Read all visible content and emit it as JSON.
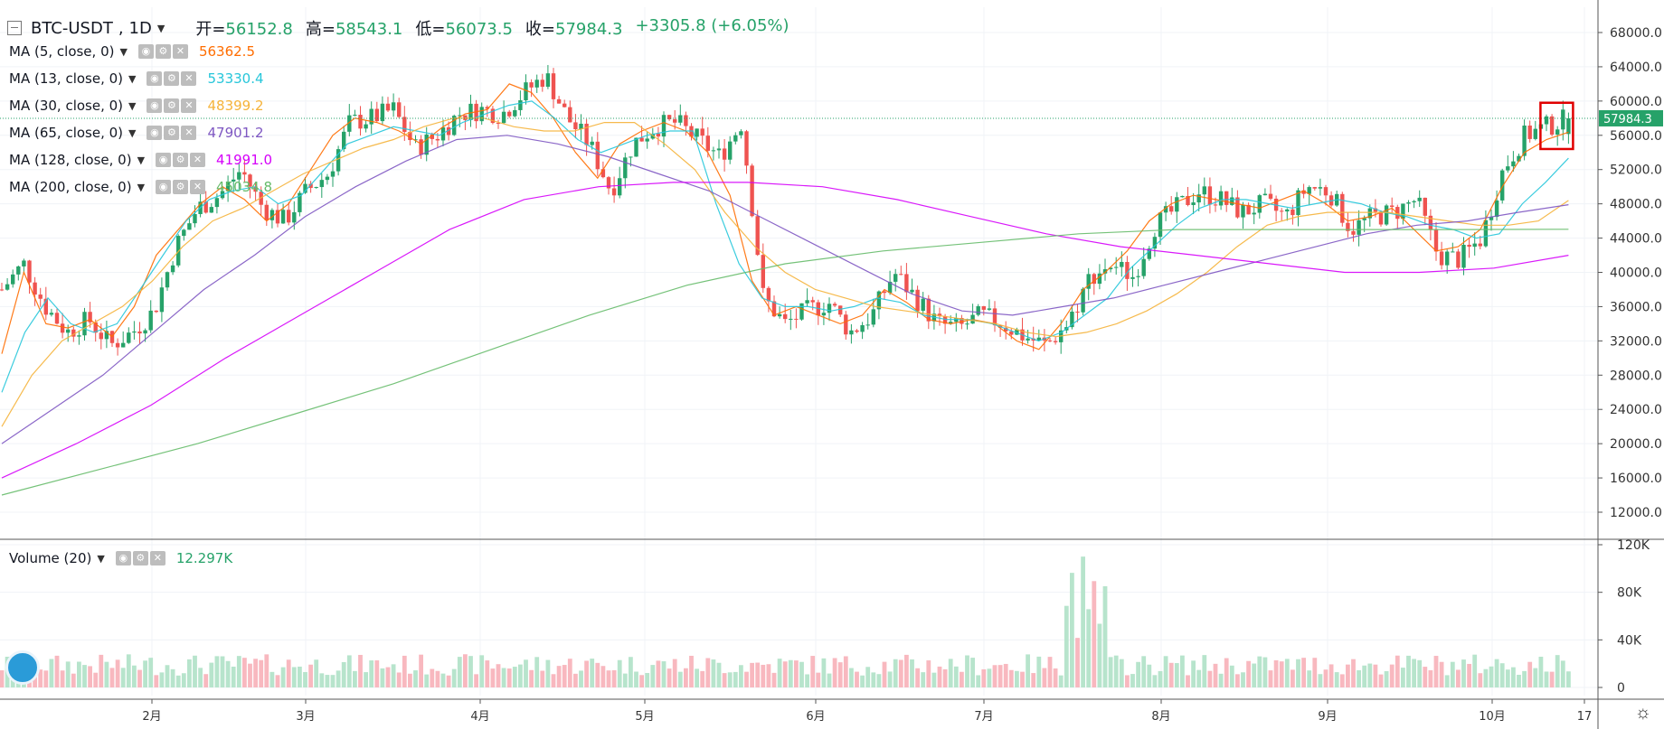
{
  "header": {
    "symbol": "BTC-USDT",
    "interval": "1D",
    "open_label": "开=",
    "open": "56152.8",
    "high_label": "高=",
    "high": "58543.1",
    "low_label": "低=",
    "low": "56073.5",
    "close_label": "收=",
    "close": "57984.3",
    "change": "+3305.8 (+6.05%)"
  },
  "indicators": [
    {
      "label": "MA (5, close, 0)",
      "value": "56362.5",
      "color": "#ff6d00"
    },
    {
      "label": "MA (13, close, 0)",
      "value": "53330.4",
      "color": "#26c6da"
    },
    {
      "label": "MA (30, close, 0)",
      "value": "48399.2",
      "color": "#f5b33a"
    },
    {
      "label": "MA (65, close, 0)",
      "value": "47901.2",
      "color": "#7e57c2"
    },
    {
      "label": "MA (128, close, 0)",
      "value": "41991.0",
      "color": "#d500f9"
    },
    {
      "label": "MA (200, close, 0)",
      "value": "45034.8",
      "color": "#66bb6a"
    }
  ],
  "volume": {
    "label": "Volume (20)",
    "value": "12.297K",
    "color": "#26a269"
  },
  "price_axis": [
    "68000.0",
    "64000.0",
    "60000.0",
    "56000.0",
    "52000.0",
    "48000.0",
    "44000.0",
    "40000.0",
    "36000.0",
    "32000.0",
    "28000.0",
    "24000.0",
    "20000.0",
    "16000.0",
    "12000.0"
  ],
  "volume_axis": [
    "120K",
    "80K",
    "40K",
    "0"
  ],
  "last_price": "57984.3",
  "time_axis": [
    "2月",
    "3月",
    "4月",
    "5月",
    "6月",
    "7月",
    "8月",
    "9月",
    "10月",
    "17"
  ],
  "colors": {
    "up": "#26a269",
    "down": "#ef5350",
    "vol_up": "#b7e4cc",
    "vol_down": "#f8b8bf",
    "last": "#26a269",
    "highlight": "#e00000"
  },
  "chart_data": {
    "type": "candlestick",
    "close_path": [
      38000,
      41000,
      36000,
      33000,
      34500,
      31500,
      33000,
      35500,
      43000,
      47500,
      49000,
      52000,
      47500,
      46000,
      49500,
      51500,
      57500,
      58000,
      59000,
      54500,
      56000,
      58500,
      59000,
      58500,
      61000,
      63000,
      58000,
      55000,
      49500,
      55000,
      57000,
      57500,
      55500,
      53500,
      57500,
      37000,
      34000,
      35500,
      36500,
      33000,
      35000,
      40000,
      37000,
      34000,
      33500,
      35000,
      34000,
      32500,
      31500,
      34000,
      39500,
      41000,
      39500,
      45500,
      47500,
      49500,
      48500,
      47000,
      48000,
      46500,
      50000,
      49500,
      45000,
      46500,
      47000,
      48500,
      42000,
      41500,
      44000,
      52000,
      56000,
      57000,
      57984.3
    ],
    "ma": [
      {
        "name": "MA (5, close, 0)",
        "values": [
          30500,
          40000,
          34000,
          33500,
          34500,
          32500,
          36000,
          42000,
          45000,
          48000,
          50000,
          48500,
          46000,
          48000,
          52000,
          56000,
          58000,
          57500,
          56500,
          55000,
          57000,
          58500,
          59000,
          62000,
          61000,
          58000,
          54000,
          51000,
          55000,
          56500,
          57500,
          56500,
          54000,
          49000,
          39000,
          35000,
          36000,
          35000,
          34000,
          35000,
          38000,
          36500,
          34500,
          34000,
          34500,
          34000,
          32000,
          31000,
          34000,
          38000,
          40000,
          42500,
          46000,
          48000,
          49000,
          48500,
          48000,
          47500,
          48500,
          49500,
          48000,
          46000,
          46500,
          47500,
          45000,
          42500,
          43000,
          45000,
          50000,
          54000,
          55500,
          56362.5
        ]
      },
      {
        "name": "MA (13, close, 0)",
        "values": [
          26000,
          33000,
          37000,
          34000,
          33000,
          34000,
          38000,
          42000,
          46000,
          48500,
          49500,
          50000,
          48000,
          49000,
          52000,
          55000,
          56000,
          57000,
          56500,
          56000,
          57500,
          58500,
          59500,
          60000,
          58000,
          55500,
          54000,
          55000,
          56000,
          56500,
          56500,
          48000,
          41000,
          37000,
          36000,
          36000,
          35500,
          36000,
          37000,
          36500,
          35000,
          34500,
          34500,
          34000,
          33000,
          32000,
          33000,
          35000,
          37000,
          40500,
          43000,
          45500,
          47500,
          48500,
          48500,
          48000,
          47500,
          48000,
          48500,
          48000,
          47000,
          46500,
          45500,
          45000,
          44000,
          44500,
          48000,
          50500,
          53330.4
        ]
      },
      {
        "name": "MA (30, close, 0)",
        "values": [
          22000,
          28000,
          32000,
          34000,
          36000,
          39000,
          43000,
          46000,
          47500,
          49500,
          51500,
          53000,
          54500,
          55500,
          57000,
          58000,
          58000,
          57000,
          56500,
          56500,
          57500,
          57500,
          55000,
          52000,
          47000,
          43000,
          40000,
          38000,
          37000,
          36000,
          35500,
          35000,
          34500,
          34000,
          33000,
          32500,
          33000,
          34000,
          35500,
          37500,
          40000,
          43000,
          45500,
          46500,
          47000,
          47000,
          47000,
          46500,
          46000,
          45500,
          45500,
          46000,
          48399.2
        ]
      },
      {
        "name": "MA (65, close, 0)",
        "values": [
          20000,
          24000,
          28000,
          33000,
          38000,
          42000,
          46500,
          50000,
          53000,
          55500,
          56000,
          55000,
          53500,
          51500,
          49500,
          46500,
          43500,
          40500,
          37500,
          35500,
          35000,
          36000,
          37000,
          38500,
          40000,
          41500,
          43000,
          44500,
          45500,
          46000,
          47000,
          47901.2
        ]
      },
      {
        "name": "MA (128, close, 0)",
        "values": [
          16000,
          20000,
          24500,
          30000,
          35000,
          40000,
          45000,
          48500,
          50000,
          50500,
          50500,
          50000,
          48500,
          46500,
          44500,
          43000,
          42000,
          41000,
          40000,
          40000,
          40500,
          41991.0
        ]
      },
      {
        "name": "MA (200, close, 0)",
        "values": [
          14000,
          17000,
          20000,
          23500,
          27000,
          31000,
          35000,
          38500,
          41000,
          42500,
          43500,
          44500,
          45000,
          45000,
          45000,
          45000,
          45034.8
        ]
      }
    ],
    "ylim": [
      11000,
      70000
    ],
    "volume_ylim": [
      0,
      120
    ]
  }
}
